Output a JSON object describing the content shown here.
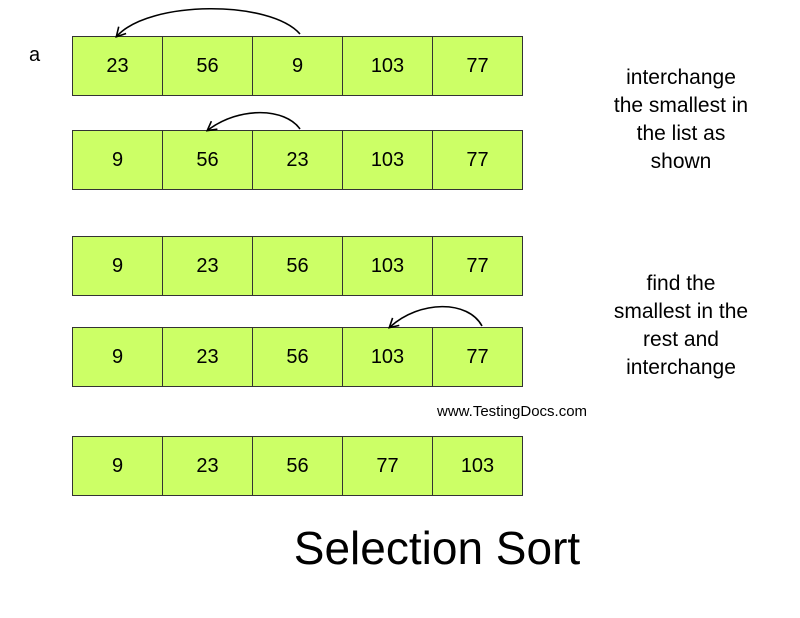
{
  "diagram": {
    "array_label": "a",
    "rows": [
      {
        "cells": [
          "23",
          "56",
          "9",
          "103",
          "77"
        ],
        "swap": [
          2,
          0
        ]
      },
      {
        "cells": [
          "9",
          "56",
          "23",
          "103",
          "77"
        ],
        "swap": [
          2,
          1
        ]
      },
      {
        "cells": [
          "9",
          "23",
          "56",
          "103",
          "77"
        ]
      },
      {
        "cells": [
          "9",
          "23",
          "56",
          "103",
          "77"
        ],
        "swap": [
          4,
          3
        ]
      },
      {
        "cells": [
          "9",
          "23",
          "56",
          "77",
          "103"
        ]
      }
    ],
    "notes": [
      "interchange\nthe smallest in\nthe list as\nshown",
      "find the\nsmallest in the\nrest and\ninterchange"
    ],
    "watermark": "www.TestingDocs.com",
    "title": "Selection Sort",
    "colors": {
      "cell_fill": "#ccff66",
      "cell_border": "#333333",
      "arrow": "#000000"
    }
  }
}
